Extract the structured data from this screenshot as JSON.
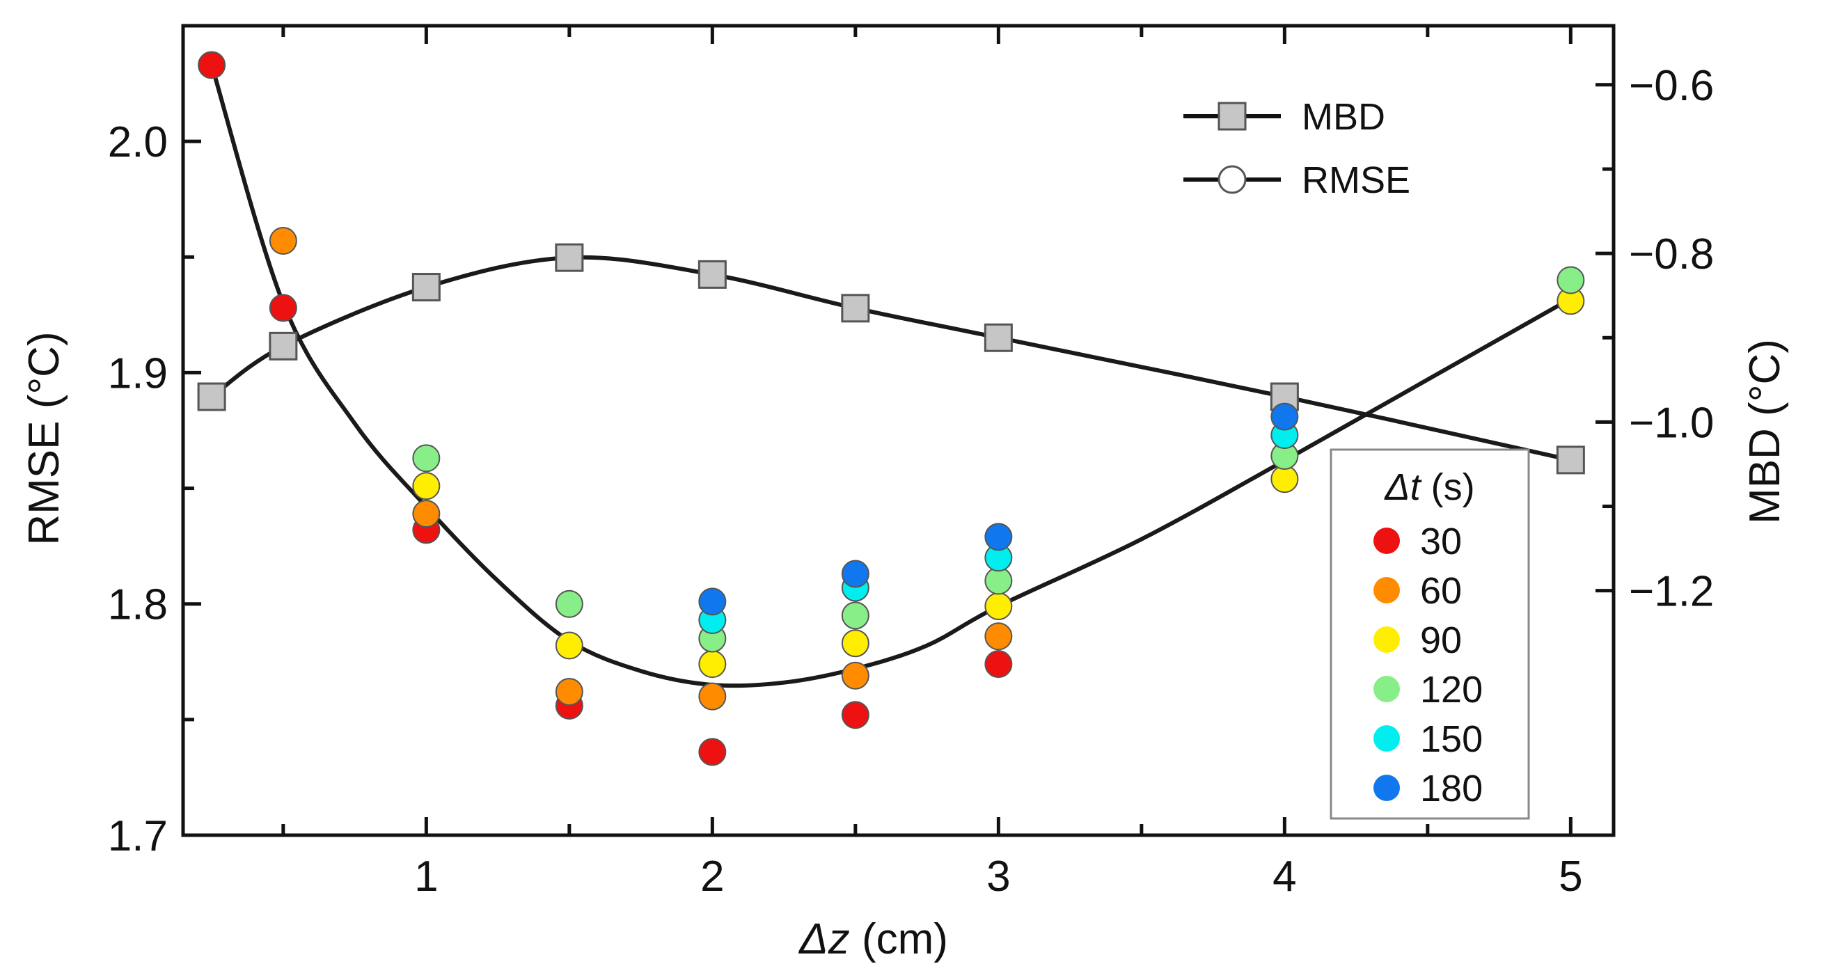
{
  "chart_data": {
    "type": "scatter",
    "title": "",
    "xlabel": {
      "italic": "Δz",
      "unit": " (cm)"
    },
    "ylabel_left": "RMSE (°C)",
    "ylabel_right": "MBD (°C)",
    "xlim": [
      0.15,
      5.15
    ],
    "ylim_left": [
      1.7,
      2.05
    ],
    "ylim_right": [
      -1.49,
      -0.53
    ],
    "xticks": [
      1,
      2,
      3,
      4,
      5
    ],
    "xtick_labels": [
      "1",
      "2",
      "3",
      "4",
      "5"
    ],
    "xminor": [
      0.5,
      1.5,
      2.5,
      3.5,
      4.5
    ],
    "yticks_left": [
      1.7,
      1.8,
      1.9,
      2.0
    ],
    "ytick_labels_left": [
      "1.7",
      "1.8",
      "1.9",
      "2.0"
    ],
    "yminor_left": [
      1.75,
      1.85,
      1.95,
      2.05
    ],
    "yticks_right": [
      -1.2,
      -1.0,
      -0.8,
      -0.6
    ],
    "ytick_labels_right": [
      "−1.2",
      "−1.0",
      "−0.8",
      "−0.6"
    ],
    "yminor_right": [
      -1.1,
      -0.9,
      -0.7
    ],
    "legend_main": [
      {
        "label": "MBD",
        "marker": "square"
      },
      {
        "label": "RMSE",
        "marker": "circle"
      }
    ],
    "mbd": {
      "x": [
        0.25,
        0.5,
        1.0,
        1.5,
        2.0,
        2.5,
        3.0,
        4.0,
        5.0
      ],
      "y": [
        -0.97,
        -0.91,
        -0.84,
        -0.805,
        -0.825,
        -0.865,
        -0.9,
        -0.97,
        -1.045
      ]
    },
    "rmse_fit": {
      "x": [
        0.25,
        0.5,
        0.75,
        1.0,
        1.25,
        1.5,
        1.75,
        2.0,
        2.25,
        2.5,
        2.75,
        3.0,
        3.5,
        4.0,
        4.5,
        5.0
      ],
      "y": [
        2.033,
        1.93,
        1.878,
        1.842,
        1.81,
        1.784,
        1.771,
        1.765,
        1.766,
        1.772,
        1.782,
        1.799,
        1.828,
        1.862,
        1.897,
        1.932
      ]
    },
    "dt_legend_title": {
      "italic": "Δt",
      "unit": " (s)"
    },
    "rmse_series": [
      {
        "name": "30",
        "color": "#ee1111",
        "x": [
          0.25,
          0.5,
          1.0,
          1.5,
          2.0,
          2.5,
          3.0
        ],
        "y": [
          2.033,
          1.928,
          1.832,
          1.756,
          1.736,
          1.752,
          1.774
        ]
      },
      {
        "name": "60",
        "color": "#ff8c00",
        "x": [
          0.5,
          1.0,
          1.5,
          2.0,
          2.5,
          3.0
        ],
        "y": [
          1.957,
          1.839,
          1.762,
          1.76,
          1.769,
          1.786
        ]
      },
      {
        "name": "90",
        "color": "#ffee00",
        "x": [
          1.0,
          1.5,
          2.0,
          2.5,
          3.0,
          4.0,
          5.0
        ],
        "y": [
          1.851,
          1.782,
          1.774,
          1.783,
          1.799,
          1.854,
          1.931
        ]
      },
      {
        "name": "120",
        "color": "#88ee88",
        "x": [
          1.0,
          1.5,
          2.0,
          2.5,
          3.0,
          4.0,
          5.0
        ],
        "y": [
          1.863,
          1.8,
          1.785,
          1.795,
          1.81,
          1.864,
          1.94
        ]
      },
      {
        "name": "150",
        "color": "#00eeee",
        "x": [
          2.0,
          2.5,
          3.0,
          4.0
        ],
        "y": [
          1.793,
          1.807,
          1.82,
          1.873
        ]
      },
      {
        "name": "180",
        "color": "#1177ee",
        "x": [
          2.0,
          2.5,
          3.0,
          4.0
        ],
        "y": [
          1.801,
          1.813,
          1.829,
          1.881
        ]
      }
    ]
  }
}
